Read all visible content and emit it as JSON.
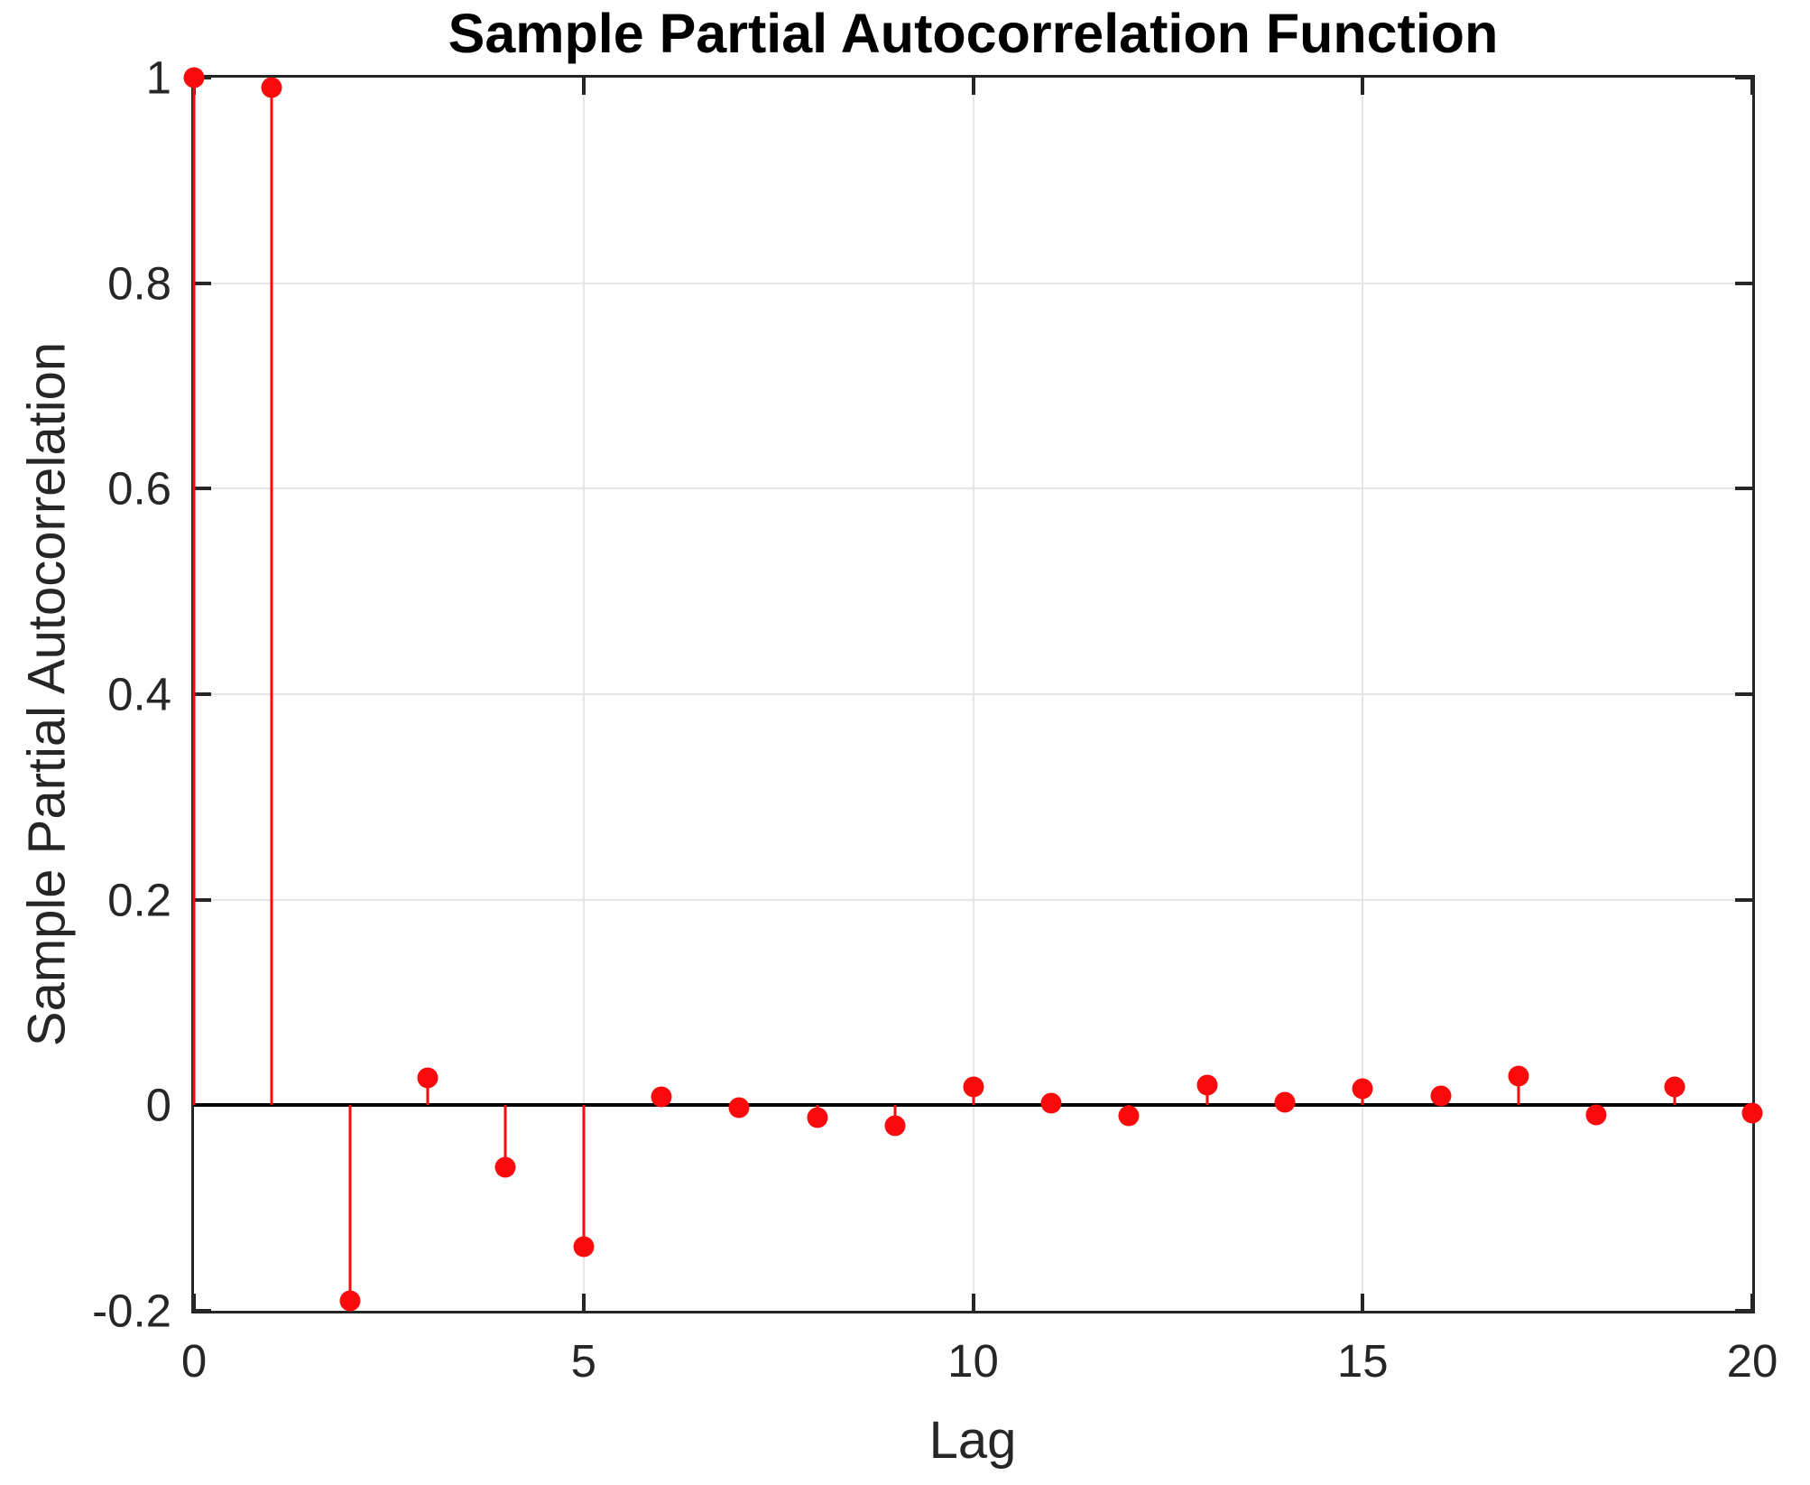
{
  "title": "Sample Partial Autocorrelation Function",
  "chart_data": {
    "type": "stem",
    "title": "Sample Partial Autocorrelation Function",
    "xlabel": "Lag",
    "ylabel": "Sample Partial Autocorrelation",
    "xlim": [
      0,
      20
    ],
    "ylim": [
      -0.2,
      1
    ],
    "grid": true,
    "x_ticks": [
      0,
      5,
      10,
      15,
      20
    ],
    "x_tick_labels": [
      "0",
      "5",
      "10",
      "15",
      "20"
    ],
    "y_ticks": [
      -0.2,
      0,
      0.2,
      0.4,
      0.6,
      0.8,
      1
    ],
    "y_tick_labels": [
      "-0.2",
      "0",
      "0.2",
      "0.4",
      "0.6",
      "0.8",
      "1"
    ],
    "x": [
      0,
      1,
      2,
      3,
      4,
      5,
      6,
      7,
      8,
      9,
      10,
      11,
      12,
      13,
      14,
      15,
      16,
      17,
      18,
      19,
      20
    ],
    "values": [
      1.0,
      0.99,
      -0.19,
      0.027,
      -0.06,
      -0.138,
      0.008,
      -0.002,
      -0.012,
      -0.02,
      0.018,
      0.002,
      -0.01,
      0.02,
      0.003,
      0.016,
      0.009,
      0.028,
      -0.009,
      0.018,
      -0.008
    ],
    "colors": {
      "stem": "#fa0a0a",
      "marker": "#fa0a0a",
      "baseline": "#000000",
      "axis": "#262626",
      "grid": "#e6e6e6",
      "tick_label": "#262626",
      "title": "#000000",
      "background": "#ffffff"
    },
    "legend": null
  }
}
